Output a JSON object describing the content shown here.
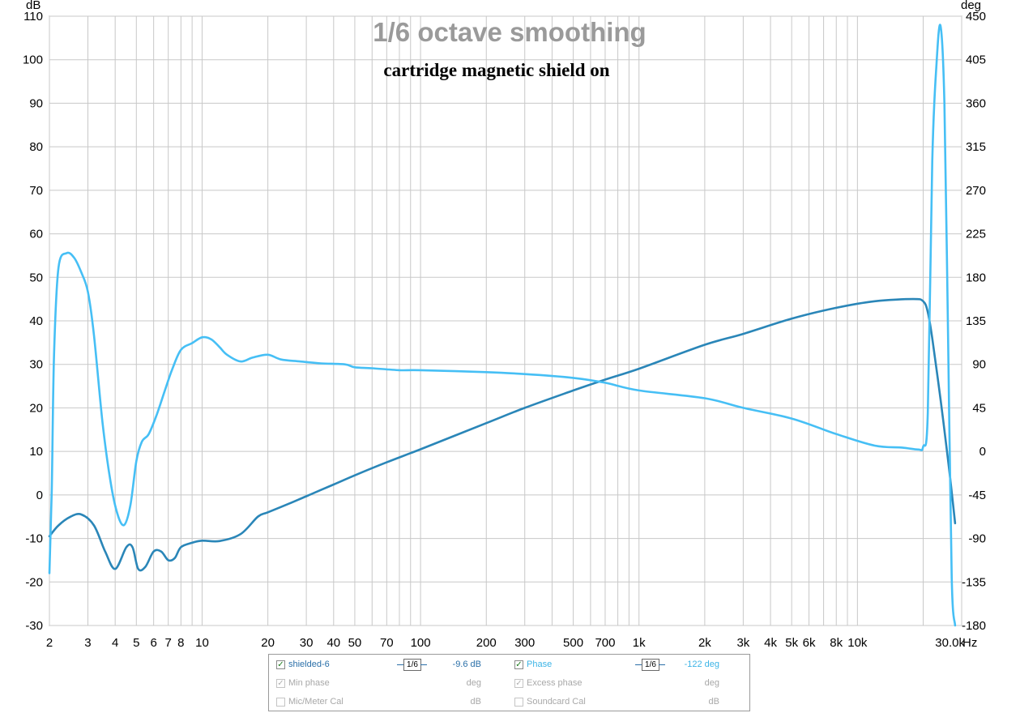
{
  "chart_data": {
    "type": "line",
    "title": "1/6 octave smoothing",
    "subtitle": "cartridge magnetic shield on",
    "y_left_unit": "dB",
    "y_right_unit": "deg",
    "x_unit": "Hz",
    "x_scale": "log",
    "xlim": [
      2,
      30000
    ],
    "ylim_left": [
      -30,
      110
    ],
    "ylim_right": [
      -180,
      450
    ],
    "grid": true,
    "x_tick_labels": [
      "2",
      "3",
      "4",
      "5",
      "6",
      "7",
      "8",
      "10",
      "20",
      "30",
      "40",
      "50",
      "70",
      "100",
      "200",
      "300",
      "500",
      "700",
      "1k",
      "2k",
      "3k",
      "4k",
      "5k",
      "6k",
      "8k",
      "10k",
      "30.0k"
    ],
    "x_tick_values": [
      2,
      3,
      4,
      5,
      6,
      7,
      8,
      10,
      20,
      30,
      40,
      50,
      70,
      100,
      200,
      300,
      500,
      700,
      1000,
      2000,
      3000,
      4000,
      5000,
      6000,
      8000,
      10000,
      30000
    ],
    "y_left_ticks": [
      -30,
      -20,
      -10,
      0,
      10,
      20,
      30,
      40,
      50,
      60,
      70,
      80,
      90,
      100,
      110
    ],
    "y_right_ticks": [
      -180,
      -135,
      -90,
      -45,
      0,
      45,
      90,
      135,
      180,
      225,
      270,
      315,
      360,
      405,
      450
    ],
    "series": [
      {
        "name": "shielded-6",
        "axis": "left",
        "color": "#2a86b8",
        "x": [
          2,
          2.2,
          2.5,
          2.8,
          3.2,
          3.6,
          4.0,
          4.5,
          4.8,
          5.1,
          5.5,
          6.0,
          6.5,
          7.0,
          7.5,
          8,
          9,
          10,
          12,
          15,
          18,
          20,
          25,
          30,
          40,
          50,
          70,
          100,
          200,
          300,
          500,
          700,
          1000,
          2000,
          3000,
          5000,
          8000,
          12000,
          18000,
          20000,
          21000,
          22000,
          24000,
          26000,
          28000
        ],
        "y": [
          -9.5,
          -7,
          -5,
          -4.5,
          -7,
          -13,
          -17,
          -12,
          -12,
          -17,
          -16.5,
          -13,
          -13,
          -15,
          -14.5,
          -12,
          -11,
          -10.5,
          -10.6,
          -9,
          -5,
          -4,
          -2,
          -0.3,
          2.4,
          4.5,
          7.5,
          10.5,
          16.5,
          20,
          24,
          26.5,
          29,
          34.5,
          37,
          40.5,
          43,
          44.5,
          45,
          44.5,
          42,
          36,
          22,
          8,
          -6.5
        ]
      },
      {
        "name": "Phase",
        "axis": "right",
        "color": "#46bff5",
        "x": [
          2,
          2.05,
          2.1,
          2.2,
          2.4,
          2.6,
          2.8,
          3.0,
          3.2,
          3.5,
          3.8,
          4.1,
          4.4,
          4.7,
          5.0,
          5.3,
          5.7,
          6.2,
          6.8,
          7.3,
          8,
          9,
          10,
          11,
          12,
          13,
          15,
          17,
          20,
          23,
          28,
          35,
          45,
          50,
          60,
          80,
          100,
          200,
          300,
          500,
          700,
          1000,
          2000,
          3000,
          5000,
          8000,
          12000,
          16000,
          19000,
          20000,
          21000,
          22000,
          23000,
          24000,
          25000,
          26000,
          27000,
          28000
        ],
        "y": [
          -126,
          -40,
          100,
          190,
          205,
          200,
          185,
          165,
          120,
          30,
          -30,
          -65,
          -76,
          -55,
          -10,
          10,
          18,
          38,
          65,
          85,
          105,
          112,
          118,
          116,
          108,
          100,
          93,
          97,
          100,
          95,
          93,
          91,
          90,
          87,
          86,
          84,
          84,
          82,
          80,
          76,
          71,
          63,
          55,
          45,
          34,
          18,
          6,
          4,
          2,
          5,
          40,
          300,
          400,
          440,
          360,
          120,
          -130,
          -180
        ]
      }
    ],
    "legend": {
      "rows": [
        [
          {
            "label": "shielded-6",
            "checked": true,
            "active": true,
            "smoothing": "1/6",
            "value": "-9.6 dB"
          },
          {
            "label": "Phase",
            "checked": true,
            "active": true,
            "smoothing": "1/6",
            "value": "-122 deg"
          }
        ],
        [
          {
            "label": "Min phase",
            "checked": true,
            "active": false,
            "value": "deg"
          },
          {
            "label": "Excess phase",
            "checked": true,
            "active": false,
            "value": "deg"
          }
        ],
        [
          {
            "label": "Mic/Meter Cal",
            "checked": false,
            "active": false,
            "value": "dB"
          },
          {
            "label": "Soundcard Cal",
            "checked": false,
            "active": false,
            "value": "dB"
          }
        ]
      ]
    }
  }
}
